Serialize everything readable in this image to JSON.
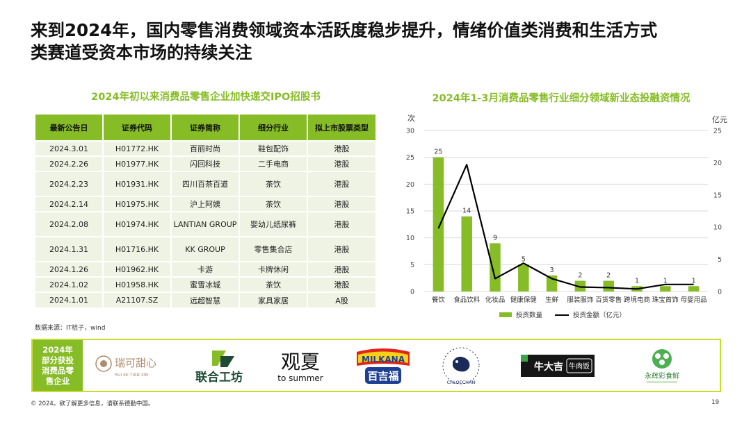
{
  "title": {
    "line1": "来到2024年，国内零售消费领域资本活跃度稳步提升，情绪价值类消费和生活方式",
    "line2": "类赛道受资本市场的持续关注"
  },
  "left_section": {
    "subtitle": "2024年初以来消费品零售企业加快递交IPO招股书",
    "headers": [
      "最新公告日",
      "证券代码",
      "证券简称",
      "细分行业",
      "拟上市股票类型"
    ],
    "rows": [
      [
        "2024.3.01",
        "H01772.HK",
        "百丽时尚",
        "鞋包配饰",
        "港股"
      ],
      [
        "2024.2.26",
        "H01977.HK",
        "闪回科技",
        "二手电商",
        "港股"
      ],
      [
        "2024.2.23",
        "H01931.HK",
        "四川百茶百道",
        "茶饮",
        "港股"
      ],
      [
        "2024.2.14",
        "H01975.HK",
        "沪上阿姨",
        "茶饮",
        "港股"
      ],
      [
        "2024.2.08",
        "H01974.HK",
        "LANTIAN GROUP",
        "婴幼儿纸尿裤",
        "港股"
      ],
      [
        "2024.1.31",
        "H01716.HK",
        "KK GROUP",
        "零售集合店",
        "港股"
      ],
      [
        "2024.1.26",
        "H01962.HK",
        "卡游",
        "卡牌休闲",
        "港股"
      ],
      [
        "2024.1.02",
        "H01958.HK",
        "蜜雪冰城",
        "茶饮",
        "港股"
      ],
      [
        "2024.1.01",
        "A21107.SZ",
        "远超智慧",
        "家具家居",
        "A股"
      ]
    ],
    "source": "数据来源：IT桔子，wind"
  },
  "chart_data": {
    "type": "bar",
    "title": "2024年1-3月消费品零售行业细分领域新业态投融资情况",
    "categories": [
      "餐饮",
      "食品饮料",
      "化妆品",
      "健康保健",
      "生鲜",
      "服装服饰",
      "百货零售",
      "跨境电商",
      "珠宝首饰",
      "母婴用品"
    ],
    "ylabel": "次",
    "y2label": "亿元",
    "ylim": [
      0,
      30
    ],
    "y2lim": [
      0,
      25
    ],
    "yticks": [
      "0",
      "5",
      "10",
      "15",
      "20",
      "25",
      "30"
    ],
    "y2ticks": [
      "0",
      "5",
      "10",
      "15",
      "20",
      "25"
    ],
    "series": [
      {
        "name": "投资数量",
        "type": "bar",
        "axis": "left",
        "values": [
          25,
          14,
          9,
          5,
          3,
          2,
          2,
          1,
          1,
          1
        ]
      },
      {
        "name": "投资金额（亿元）",
        "type": "line",
        "axis": "right",
        "values": [
          9.8,
          19.7,
          2.0,
          4.4,
          2.0,
          0.7,
          0.6,
          0.4,
          1.1,
          1.1
        ]
      }
    ],
    "legend": "bottom",
    "colors": {
      "bar": "#86bc25",
      "line": "#000000",
      "grid": "#d9d9d9"
    }
  },
  "logos_band": {
    "label": "2024年部分获投消费品零售企业",
    "logos": [
      {
        "icon": "ruike-tianxin-logo",
        "text": "瑞可甜心",
        "sub": "RUI KE TIAN XIN"
      },
      {
        "icon": "lianhe-gongfang-logo",
        "text": "联合工坊"
      },
      {
        "icon": "guanxia-logo",
        "text": "观夏",
        "sub": "to summer"
      },
      {
        "icon": "milkana-logo",
        "text": "MILKANA",
        "sub": "百吉福"
      },
      {
        "icon": "chloechan-logo",
        "text": "CHLOECHAN"
      },
      {
        "icon": "niudaji-logo",
        "text": "牛大吉",
        "sub": "牛肉饭"
      },
      {
        "icon": "yonghui-caishixian-logo",
        "text": "永辉彩食鲜"
      }
    ]
  },
  "footer": {
    "text": "© 2024。欲了解更多信息，请联系德勤中国。",
    "page": "19"
  }
}
